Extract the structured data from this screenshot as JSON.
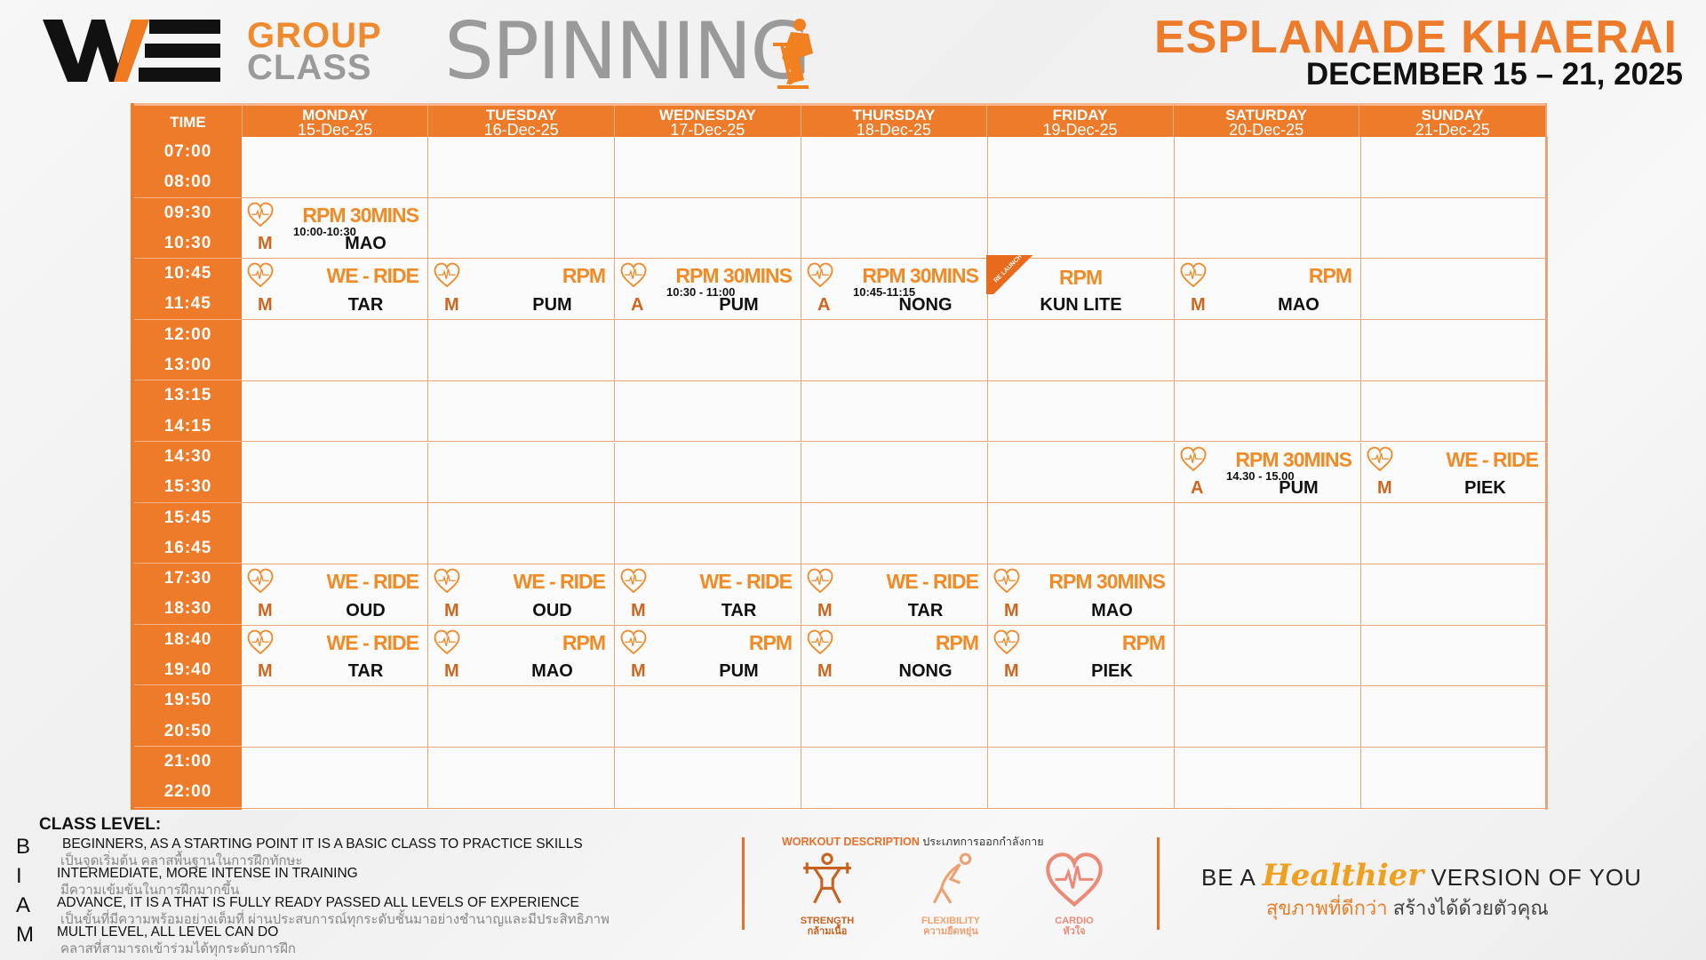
{
  "header": {
    "logo": "WE",
    "group": "GROUP",
    "class": "CLASS",
    "title": "SPINNING",
    "venue": "ESPLANADE KHAERAI",
    "date_range": "DECEMBER 15 – 21, 2025"
  },
  "colors": {
    "brand": "#ee7b2a",
    "text": "#111111"
  },
  "table": {
    "time_header": "TIME",
    "days": [
      {
        "name": "MONDAY",
        "date": "15-Dec-25"
      },
      {
        "name": "TUESDAY",
        "date": "16-Dec-25"
      },
      {
        "name": "WEDNESDAY",
        "date": "17-Dec-25"
      },
      {
        "name": "THURSDAY",
        "date": "18-Dec-25"
      },
      {
        "name": "FRIDAY",
        "date": "19-Dec-25"
      },
      {
        "name": "SATURDAY",
        "date": "20-Dec-25"
      },
      {
        "name": "SUNDAY",
        "date": "21-Dec-25"
      }
    ],
    "slots": [
      {
        "times": [
          "07:00",
          "08:00"
        ],
        "classes": []
      },
      {
        "times": [
          "09:30",
          "10:30"
        ],
        "classes": [
          {
            "day": 0,
            "name": "RPM 30MINS",
            "time": "10:00-10:30",
            "level": "M",
            "instructor": "MAO",
            "icon": "heart-pulse-icon"
          }
        ]
      },
      {
        "times": [
          "10:45",
          "11:45"
        ],
        "classes": [
          {
            "day": 0,
            "name": "WE - RIDE",
            "level": "M",
            "instructor": "TAR",
            "icon": "heart-pulse-icon"
          },
          {
            "day": 1,
            "name": "RPM",
            "level": "M",
            "instructor": "PUM",
            "icon": "heart-pulse-icon"
          },
          {
            "day": 2,
            "name": "RPM 30MINS",
            "time": "10:30 -  11:00",
            "level": "A",
            "instructor": "PUM",
            "icon": "heart-pulse-icon"
          },
          {
            "day": 3,
            "name": "RPM 30MINS",
            "time": "10:45-11:15",
            "level": "A",
            "instructor": "NONG",
            "icon": "heart-pulse-icon"
          },
          {
            "day": 4,
            "name": "RPM",
            "level": "",
            "instructor": "KUN LITE",
            "ribbon": "RE LAUNCH"
          },
          {
            "day": 5,
            "name": "RPM",
            "level": "M",
            "instructor": "MAO",
            "icon": "heart-pulse-icon"
          }
        ]
      },
      {
        "times": [
          "12:00",
          "13:00"
        ],
        "classes": []
      },
      {
        "times": [
          "13:15",
          "14:15"
        ],
        "classes": []
      },
      {
        "times": [
          "14:30",
          "15:30"
        ],
        "classes": [
          {
            "day": 5,
            "name": "RPM 30MINS",
            "time": "14.30 - 15.00",
            "level": "A",
            "instructor": "PUM",
            "icon": "heart-pulse-icon"
          },
          {
            "day": 6,
            "name": "WE - RIDE",
            "level": "M",
            "instructor": "PIEK",
            "icon": "heart-pulse-icon"
          }
        ]
      },
      {
        "times": [
          "15:45",
          "16:45"
        ],
        "classes": []
      },
      {
        "times": [
          "17:30",
          "18:30"
        ],
        "classes": [
          {
            "day": 0,
            "name": "WE - RIDE",
            "level": "M",
            "instructor": "OUD",
            "icon": "heart-pulse-icon"
          },
          {
            "day": 1,
            "name": "WE - RIDE",
            "level": "M",
            "instructor": "OUD",
            "icon": "heart-pulse-icon"
          },
          {
            "day": 2,
            "name": "WE - RIDE",
            "level": "M",
            "instructor": "TAR",
            "icon": "heart-pulse-icon"
          },
          {
            "day": 3,
            "name": "WE - RIDE",
            "level": "M",
            "instructor": "TAR",
            "icon": "heart-pulse-icon"
          },
          {
            "day": 4,
            "name": "RPM 30MINS",
            "level": "M",
            "instructor": "MAO",
            "icon": "heart-pulse-icon"
          }
        ]
      },
      {
        "times": [
          "18:40",
          "19:40"
        ],
        "classes": [
          {
            "day": 0,
            "name": "WE - RIDE",
            "level": "M",
            "instructor": "TAR",
            "icon": "heart-pulse-icon"
          },
          {
            "day": 1,
            "name": "RPM",
            "level": "M",
            "instructor": "MAO",
            "icon": "heart-pulse-icon"
          },
          {
            "day": 2,
            "name": "RPM",
            "level": "M",
            "instructor": "PUM",
            "icon": "heart-pulse-icon"
          },
          {
            "day": 3,
            "name": "RPM",
            "level": "M",
            "instructor": "NONG",
            "icon": "heart-pulse-icon"
          },
          {
            "day": 4,
            "name": "RPM",
            "level": "M",
            "instructor": "PIEK",
            "icon": "heart-pulse-icon"
          }
        ]
      },
      {
        "times": [
          "19:50",
          "20:50"
        ],
        "classes": []
      },
      {
        "times": [
          "21:00",
          "22:00"
        ],
        "classes": []
      }
    ]
  },
  "class_level": {
    "title": "CLASS LEVEL:",
    "levels": [
      {
        "letter": "B",
        "en": "BEGINNERS, AS A STARTING POINT IT IS A BASIC CLASS TO PRACTICE SKILLS",
        "th": "เป็นจุดเริ่มต้น คลาสพื้นฐานในการฝึกทักษะ"
      },
      {
        "letter": "I",
        "en": "INTERMEDIATE, MORE INTENSE IN TRAINING",
        "th": "มีความเข้มข้นในการฝึกมากขึ้น"
      },
      {
        "letter": "A",
        "en": "ADVANCE, IT IS A THAT IS FULLY READY PASSED ALL LEVELS OF EXPERIENCE",
        "th": "เป็นขั้นที่มีความพร้อมอย่างเต็มที่ ผ่านประสบการณ์ทุกระดับชั้นมาอย่างชำนาญและมีประสิทธิภาพ"
      },
      {
        "letter": "M",
        "en": "MULTI LEVEL, ALL LEVEL CAN DO",
        "th": "คลาสที่สามารถเข้าร่วมได้ทุกระดับการฝึก"
      }
    ]
  },
  "workout": {
    "title_en": "WORKOUT DESCRIPTION",
    "title_th": "ประเภทการออกกำลังกาย",
    "types": [
      {
        "en": "STRENGTH",
        "th": "กล้ามเนื้อ",
        "icon": "weightlifter-icon",
        "color": "#c8621e"
      },
      {
        "en": "FLEXIBILITY",
        "th": "ความยืดหยุ่น",
        "icon": "stretch-icon",
        "color": "#f0a070"
      },
      {
        "en": "CARDIO",
        "th": "หัวใจ",
        "icon": "heart-pulse-icon",
        "color": "#ec8a78"
      }
    ]
  },
  "tagline": {
    "prefix": "BE A",
    "highlight": "Healthier",
    "suffix": "VERSION OF YOU",
    "th_highlight": "สุขภาพที่ดีกว่า",
    "th_rest": "สร้างได้ด้วยตัวคุณ"
  }
}
